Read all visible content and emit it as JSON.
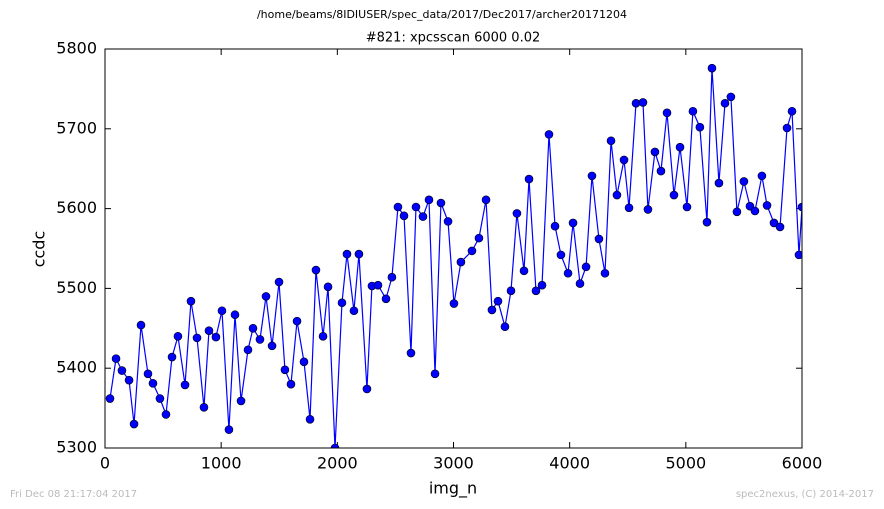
{
  "chart_data": {
    "type": "line",
    "suptitle": "/home/beams/8IDIUSER/spec_data/2017/Dec2017/archer20171204",
    "title": "#821: xpcsscan 6000 0.02",
    "x_label": "img_n",
    "y_label": "ccdc",
    "footer_left": "Fri Dec 08 21:17:04 2017",
    "footer_right": "spec2nexus, (C) 2014-2017",
    "xlim": [
      0,
      6000
    ],
    "xticks": [
      0,
      1000,
      2000,
      3000,
      4000,
      5000,
      6000
    ],
    "ylim": [
      5300,
      5800
    ],
    "yticks": [
      5300,
      5400,
      5500,
      5600,
      5700,
      5800
    ],
    "grid": false,
    "x": [
      43,
      95,
      146,
      207,
      250,
      310,
      370,
      413,
      473,
      525,
      577,
      628,
      689,
      740,
      792,
      852,
      895,
      955,
      1007,
      1067,
      1119,
      1171,
      1231,
      1274,
      1334,
      1386,
      1438,
      1498,
      1549,
      1601,
      1653,
      1713,
      1765,
      1816,
      1877,
      1920,
      1980,
      2040,
      2083,
      2143,
      2186,
      2255,
      2298,
      2350,
      2419,
      2470,
      2522,
      2574,
      2634,
      2677,
      2737,
      2789,
      2841,
      2892,
      2953,
      3004,
      3064,
      3159,
      3219,
      3280,
      3331,
      3383,
      3443,
      3495,
      3546,
      3607,
      3650,
      3710,
      3762,
      3822,
      3874,
      3925,
      3986,
      4029,
      4089,
      4141,
      4192,
      4252,
      4304,
      4356,
      4407,
      4468,
      4511,
      4571,
      4631,
      4674,
      4734,
      4786,
      4838,
      4898,
      4950,
      5010,
      5061,
      5121,
      5182,
      5225,
      5285,
      5337,
      5388,
      5440,
      5500,
      5552,
      5595,
      5655,
      5699,
      5759,
      5811,
      5871,
      5914,
      5974,
      6000
    ],
    "series": [
      {
        "name": "ccdc",
        "color": "#0000ff",
        "values": [
          5362,
          5412,
          5397,
          5385,
          5330,
          5454,
          5393,
          5381,
          5362,
          5342,
          5414,
          5440,
          5379,
          5484,
          5438,
          5351,
          5447,
          5439,
          5472,
          5323,
          5467,
          5359,
          5423,
          5450,
          5436,
          5490,
          5428,
          5508,
          5398,
          5380,
          5459,
          5408,
          5336,
          5523,
          5440,
          5502,
          5300,
          5482,
          5543,
          5472,
          5543,
          5374,
          5503,
          5504,
          5487,
          5514,
          5602,
          5591,
          5419,
          5602,
          5590,
          5611,
          5393,
          5607,
          5584,
          5481,
          5533,
          5547,
          5563,
          5611,
          5473,
          5484,
          5452,
          5497,
          5594,
          5522,
          5637,
          5497,
          5504,
          5693,
          5578,
          5542,
          5519,
          5582,
          5506,
          5527,
          5641,
          5562,
          5519,
          5685,
          5617,
          5661,
          5601,
          5732,
          5733,
          5599,
          5671,
          5647,
          5720,
          5617,
          5677,
          5602,
          5722,
          5702,
          5583,
          5776,
          5632,
          5732,
          5740,
          5596,
          5634,
          5603,
          5597,
          5641,
          5604,
          5582,
          5577,
          5701,
          5722,
          5542,
          5602
        ]
      }
    ]
  }
}
